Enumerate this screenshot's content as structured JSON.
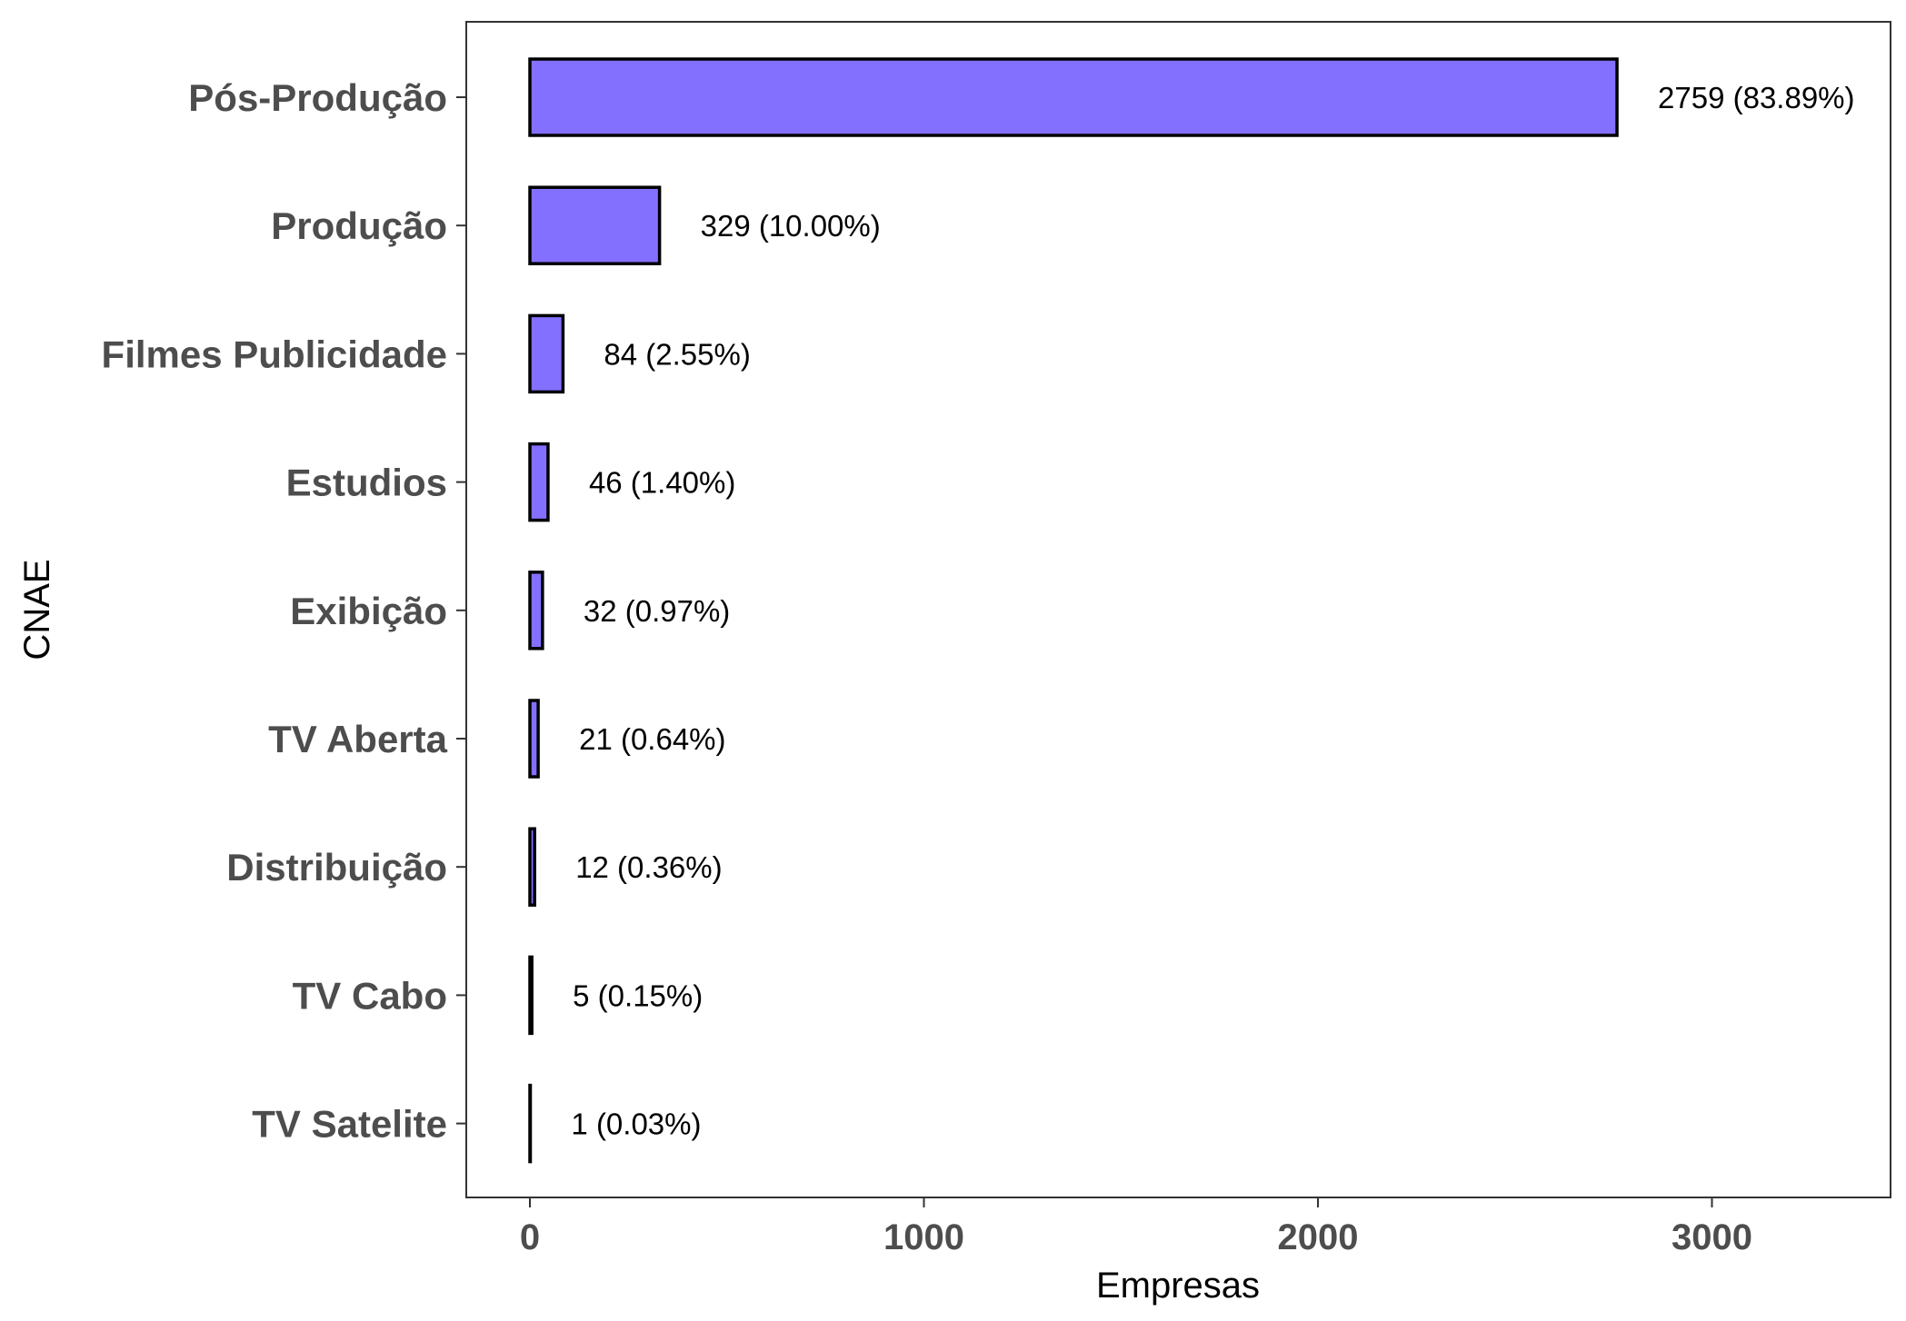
{
  "chart_data": {
    "type": "bar",
    "orientation": "horizontal",
    "categories": [
      "Pós-Produção",
      "Produção",
      "Filmes Publicidade",
      "Estudios",
      "Exibição",
      "TV Aberta",
      "Distribuição",
      "TV Cabo",
      "TV Satelite"
    ],
    "values": [
      2759,
      329,
      84,
      46,
      32,
      21,
      12,
      5,
      1
    ],
    "data_labels": [
      "2759 (83.89%)",
      "329 (10.00%)",
      "84 (2.55%)",
      "46 (1.40%)",
      "32 (0.97%)",
      "21 (0.64%)",
      "12 (0.36%)",
      "5 (0.15%)",
      "1 (0.03%)"
    ],
    "xlabel": "Empresas",
    "ylabel": "CNAE",
    "xticks": [
      0,
      1000,
      2000,
      3000
    ],
    "xtick_labels": [
      "0",
      "1000",
      "2000",
      "3000"
    ],
    "xlim": [
      -160,
      3450
    ],
    "grid": false,
    "legend": "none",
    "bar_color": "#8470ff",
    "bar_edge_color": "#000000"
  }
}
